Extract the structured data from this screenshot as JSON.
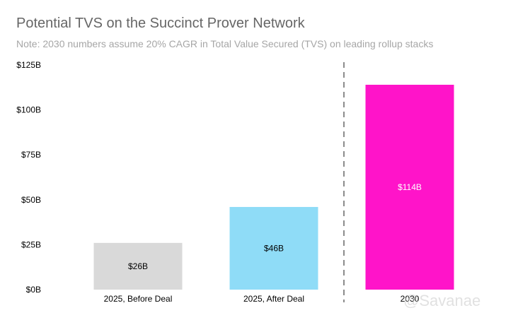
{
  "chart_data": {
    "type": "bar",
    "title": "Potential TVS on the Succinct Prover Network",
    "subtitle": "Note: 2030 numbers assume 20% CAGR in Total Value Secured (TVS) on leading rollup stacks",
    "categories": [
      "2025, Before Deal",
      "2025, After Deal",
      "2030"
    ],
    "values": [
      26,
      46,
      114
    ],
    "value_labels": [
      "$26B",
      "$46B",
      "$114B"
    ],
    "bar_colors": [
      "#d9d9d9",
      "#8fdcf7",
      "#ff14c9"
    ],
    "value_label_colors": [
      "#000000",
      "#000000",
      "#ffffff"
    ],
    "ylim": [
      0,
      125
    ],
    "yticks": [
      0,
      25,
      50,
      75,
      100,
      125
    ],
    "ytick_labels": [
      "$0B",
      "$25B",
      "$50B",
      "$75B",
      "$100B",
      "$125B"
    ],
    "xlabel": "",
    "ylabel": "",
    "grid": false,
    "divider": "dashed line between 2025, After Deal and 2030"
  },
  "watermark": "@Savanae"
}
